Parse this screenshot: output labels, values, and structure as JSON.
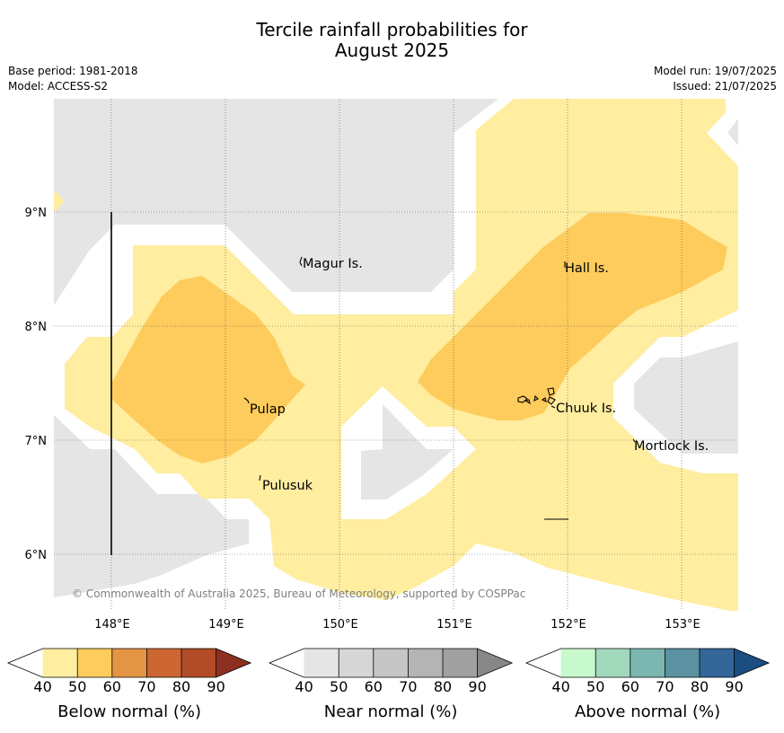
{
  "title_line1": "Tercile rainfall probabilities for",
  "title_line2": "August 2025",
  "base_period": "Base period: 1981-2018",
  "model": "Model: ACCESS-S2",
  "model_run": "Model run: 19/07/2025",
  "issued": "Issued: 21/07/2025",
  "map": {
    "lon_ticks": [
      "148°E",
      "149°E",
      "150°E",
      "151°E",
      "152°E",
      "153°E"
    ],
    "lat_ticks": [
      "9°N",
      "8°N",
      "7°N",
      "6°N"
    ],
    "places": {
      "magur": "Magur Is.",
      "hall": "Hall Is.",
      "pulap": "Pulap",
      "chuuk": "Chuuk Is.",
      "mortlock": "Mortlock Is.",
      "pulusuk": "Pulusuk"
    },
    "copyright": "© Commonwealth of Australia 2025, Bureau of Meteorology, supported by COSPPac"
  },
  "legend": {
    "ticks": [
      "40",
      "50",
      "60",
      "70",
      "80",
      "90"
    ],
    "below": {
      "title": "Below normal (%)",
      "colors": [
        "#ffeda0",
        "#fecc5c",
        "#e39444",
        "#cc6632",
        "#b24b28",
        "#8e3020"
      ]
    },
    "near": {
      "title": "Near normal (%)",
      "colors": [
        "#e5e5e5",
        "#d6d6d6",
        "#c6c6c6",
        "#b4b4b4",
        "#a0a0a0",
        "#878787"
      ]
    },
    "above": {
      "title": "Above normal (%)",
      "colors": [
        "#c8f9cd",
        "#a2d9bd",
        "#7cb6b1",
        "#5b91a1",
        "#336699",
        "#1a4d80"
      ]
    }
  }
}
